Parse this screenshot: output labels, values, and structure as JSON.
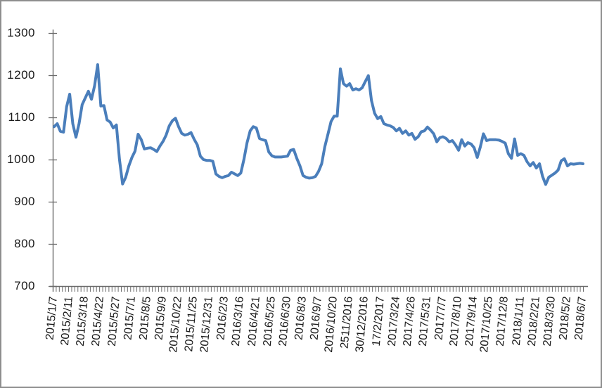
{
  "window": {
    "background": "#ffffff",
    "frame_border_color": "#8e8e8e"
  },
  "chart_data": {
    "type": "line",
    "title": "",
    "xlabel": "",
    "ylabel": "",
    "legend": "none",
    "grid": "off",
    "ylim": [
      700,
      1300
    ],
    "y_ticks": [
      1300,
      1200,
      1100,
      1000,
      900,
      800,
      700
    ],
    "line_color": "#4A7EBB",
    "axis_color": "#6b6b6b",
    "text_color": "#1a1a1a",
    "label_every": 5,
    "x_labels": [
      "2015/1/7",
      "2015/2/11",
      "2015/3/18",
      "2015/4/22",
      "2015/5/27",
      "2015/7/1",
      "2015/8/5",
      "2015/9/9",
      "2015/10/22",
      "2015/11/25",
      "2015/12/31",
      "2016/2/3",
      "2016/3/16",
      "2016/4/21",
      "2016/5/25",
      "2016/6/30",
      "2016/8/3",
      "2016/9/7",
      "2016/10/20",
      "2511/2016",
      "30/12/2016",
      "17/2/2017",
      "2017/3/24",
      "2017/4/26",
      "2017/5/31",
      "2017/7/7",
      "2017/8/10",
      "2017/9/14",
      "2017/10/25",
      "2017/12/8",
      "2018/1/11",
      "2018/2/21",
      "2018/3/30",
      "2018/5/2",
      "2018/6/7"
    ],
    "values": [
      1078,
      1085,
      1067,
      1065,
      1125,
      1155,
      1085,
      1053,
      1085,
      1130,
      1146,
      1162,
      1143,
      1175,
      1225,
      1127,
      1128,
      1094,
      1089,
      1075,
      1082,
      1000,
      942,
      958,
      985,
      1005,
      1020,
      1060,
      1047,
      1025,
      1027,
      1028,
      1024,
      1019,
      1032,
      1043,
      1058,
      1080,
      1092,
      1098,
      1078,
      1062,
      1058,
      1060,
      1064,
      1048,
      1035,
      1008,
      1000,
      998,
      998,
      996,
      966,
      960,
      957,
      960,
      962,
      970,
      966,
      962,
      968,
      1000,
      1040,
      1068,
      1078,
      1075,
      1050,
      1047,
      1045,
      1018,
      1009,
      1006,
      1006,
      1006,
      1007,
      1008,
      1022,
      1024,
      1003,
      985,
      962,
      958,
      956,
      957,
      960,
      972,
      990,
      1030,
      1060,
      1090,
      1103,
      1103,
      1215,
      1180,
      1174,
      1180,
      1165,
      1168,
      1165,
      1170,
      1185,
      1199,
      1140,
      1110,
      1097,
      1102,
      1085,
      1082,
      1080,
      1076,
      1068,
      1074,
      1062,
      1068,
      1058,
      1062,
      1048,
      1054,
      1066,
      1068,
      1077,
      1070,
      1061,
      1042,
      1052,
      1054,
      1050,
      1042,
      1045,
      1035,
      1022,
      1047,
      1032,
      1040,
      1037,
      1028,
      1005,
      1030,
      1061,
      1045,
      1047,
      1047,
      1047,
      1046,
      1043,
      1039,
      1014,
      1003,
      1049,
      1010,
      1014,
      1010,
      995,
      985,
      993,
      980,
      990,
      960,
      941,
      958,
      963,
      968,
      975,
      997,
      1002,
      985,
      990,
      989,
      990,
      991,
      990
    ]
  }
}
